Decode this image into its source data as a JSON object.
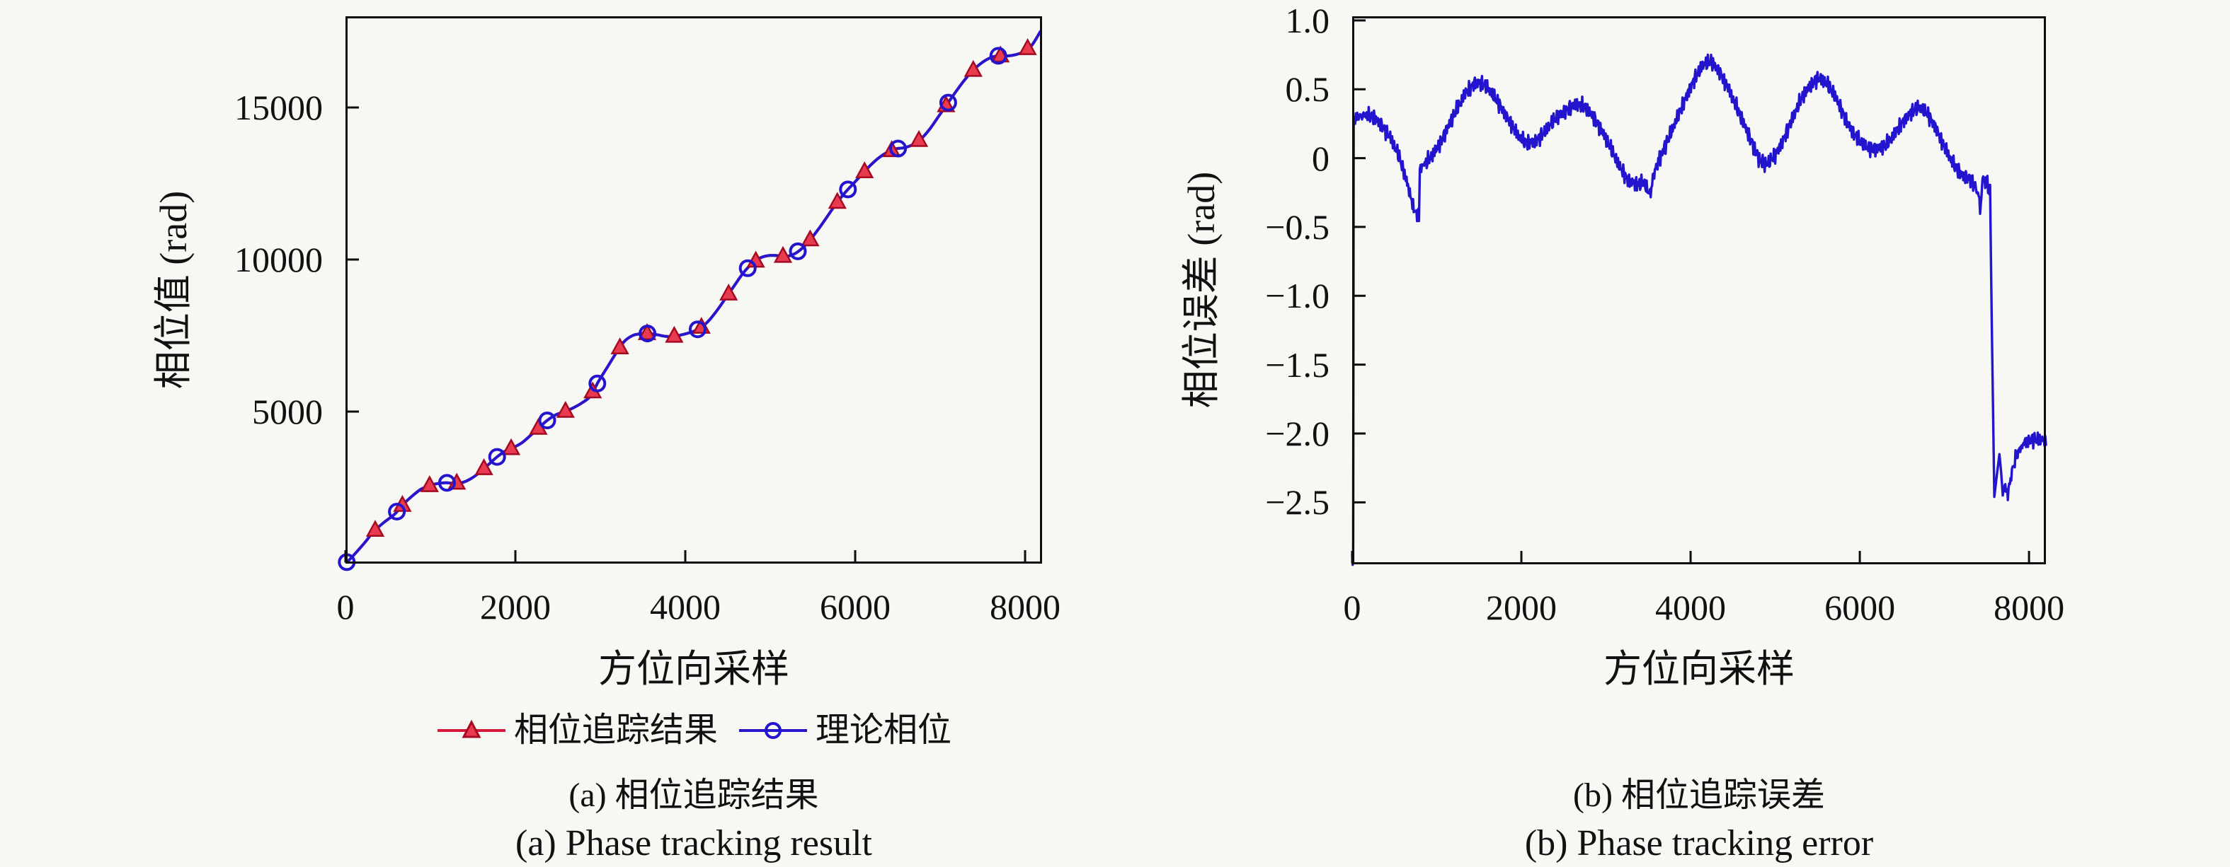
{
  "background": "#f7f7f4",
  "captions": {
    "left_zh": "(a) 相位追踪结果",
    "left_en": "(a) Phase tracking result",
    "right_zh": "(b) 相位追踪误差",
    "right_en": "(b) Phase tracking error"
  },
  "chart_data": [
    {
      "type": "line",
      "title": "",
      "xlabel": "方位向采样",
      "ylabel": "相位值 (rad)",
      "xlim": [
        0,
        8200
      ],
      "ylim": [
        0,
        18000
      ],
      "grid": false,
      "legend_position": "below",
      "xticks": [
        {
          "v": 0,
          "label": "0"
        },
        {
          "v": 2000,
          "label": "2000"
        },
        {
          "v": 4000,
          "label": "4000"
        },
        {
          "v": 6000,
          "label": "6000"
        },
        {
          "v": 8000,
          "label": "8000"
        }
      ],
      "yticks": [
        {
          "v": 5000,
          "label": "5000"
        },
        {
          "v": 10000,
          "label": "10000"
        },
        {
          "v": 15000,
          "label": "15000"
        }
      ],
      "x": [
        20,
        120,
        230,
        330,
        450,
        580,
        680,
        780,
        880,
        980,
        1080,
        1180,
        1280,
        1380,
        1480,
        1580,
        1680,
        1780,
        1880,
        1980,
        2080,
        2180,
        2280,
        2380,
        2480,
        2580,
        2680,
        2780,
        2880,
        2980,
        3080,
        3180,
        3280,
        3380,
        3480,
        3580,
        3680,
        3780,
        3880,
        3980,
        4080,
        4180,
        4280,
        4380,
        4480,
        4580,
        4680,
        4780,
        4880,
        4980,
        5080,
        5180,
        5280,
        5380,
        5480,
        5580,
        5680,
        5780,
        5880,
        5980,
        6080,
        6180,
        6280,
        6380,
        6480,
        6580,
        6680,
        6780,
        6880,
        6980,
        7080,
        7180,
        7280,
        7380,
        7480,
        7580,
        7680,
        7780,
        7880,
        7980,
        8080,
        8180
      ],
      "phase": [
        50,
        350,
        700,
        1050,
        1350,
        1630,
        1950,
        2210,
        2430,
        2560,
        2630,
        2660,
        2640,
        2670,
        2800,
        3000,
        3250,
        3500,
        3700,
        3820,
        3980,
        4220,
        4480,
        4720,
        4900,
        5000,
        5120,
        5280,
        5500,
        6000,
        6450,
        6900,
        7300,
        7500,
        7560,
        7570,
        7520,
        7470,
        7480,
        7540,
        7620,
        7750,
        8000,
        8350,
        8750,
        9150,
        9550,
        9850,
        10050,
        10130,
        10130,
        10100,
        10180,
        10380,
        10680,
        11050,
        11450,
        11850,
        12200,
        12500,
        12800,
        13100,
        13350,
        13530,
        13640,
        13680,
        13780,
        13980,
        14300,
        14700,
        15100,
        15500,
        15880,
        16200,
        16450,
        16620,
        16700,
        16690,
        16730,
        16830,
        17050,
        17500
      ],
      "series": [
        {
          "name": "相位追踪结果",
          "color": "#d4173a",
          "line_width": 4,
          "marker": "triangle",
          "marker_fill": "#e83b50",
          "marker_edge": "#a50a20",
          "marker_start": 350,
          "marker_every": 320
        },
        {
          "name": "理论相位",
          "color": "#2617cf",
          "line_width": 4,
          "marker": "circle",
          "marker_edge": "#2314cd",
          "marker_start": 15,
          "marker_every": 590
        }
      ]
    },
    {
      "type": "line",
      "title": "",
      "xlabel": "方位向采样",
      "ylabel": "相位误差 (rad)",
      "xlim": [
        0,
        8200
      ],
      "ylim": [
        -2.95,
        1.03
      ],
      "grid": false,
      "legend_position": "none",
      "xticks": [
        {
          "v": 0,
          "label": "0"
        },
        {
          "v": 2000,
          "label": "2000"
        },
        {
          "v": 4000,
          "label": "4000"
        },
        {
          "v": 6000,
          "label": "6000"
        },
        {
          "v": 8000,
          "label": "8000"
        }
      ],
      "yticks": [
        {
          "v": 1.0,
          "label": "1.0"
        },
        {
          "v": 0.5,
          "label": "0.5"
        },
        {
          "v": 0,
          "label": "0"
        },
        {
          "v": -0.5,
          "label": "−0.5"
        },
        {
          "v": -1.0,
          "label": "−1.0"
        },
        {
          "v": -1.5,
          "label": "−1.5"
        },
        {
          "v": -2.0,
          "label": "−2.0"
        },
        {
          "v": -2.5,
          "label": "−2.5"
        }
      ],
      "x": [
        0,
        12,
        18,
        60,
        150,
        250,
        350,
        450,
        550,
        650,
        720,
        760,
        790,
        800,
        850,
        950,
        1050,
        1150,
        1250,
        1350,
        1450,
        1550,
        1650,
        1750,
        1850,
        1950,
        2050,
        2150,
        2250,
        2350,
        2450,
        2550,
        2650,
        2750,
        2850,
        2950,
        3050,
        3150,
        3250,
        3350,
        3450,
        3520,
        3570,
        3650,
        3750,
        3850,
        3950,
        4050,
        4150,
        4250,
        4350,
        4450,
        4550,
        4650,
        4750,
        4820,
        4900,
        5000,
        5100,
        5200,
        5300,
        5400,
        5500,
        5600,
        5700,
        5800,
        5900,
        6000,
        6100,
        6200,
        6300,
        6400,
        6500,
        6600,
        6700,
        6800,
        6900,
        7000,
        7100,
        7200,
        7300,
        7380,
        7430,
        7450,
        7500,
        7540,
        7560,
        7590,
        7620,
        7650,
        7670,
        7690,
        7720,
        7750,
        7790,
        7840,
        7890,
        7950,
        8050,
        8150,
        8200
      ],
      "y": [
        -2.9,
        -2.9,
        0.28,
        0.3,
        0.31,
        0.3,
        0.24,
        0.15,
        0.02,
        -0.18,
        -0.35,
        -0.41,
        -0.42,
        -0.08,
        -0.05,
        0.02,
        0.12,
        0.25,
        0.37,
        0.48,
        0.55,
        0.54,
        0.47,
        0.38,
        0.28,
        0.17,
        0.11,
        0.12,
        0.17,
        0.25,
        0.31,
        0.36,
        0.39,
        0.37,
        0.3,
        0.2,
        0.08,
        -0.05,
        -0.15,
        -0.19,
        -0.18,
        -0.27,
        -0.1,
        0.02,
        0.16,
        0.3,
        0.45,
        0.58,
        0.68,
        0.7,
        0.62,
        0.5,
        0.36,
        0.22,
        0.08,
        -0.02,
        -0.05,
        0.02,
        0.14,
        0.28,
        0.42,
        0.52,
        0.58,
        0.55,
        0.46,
        0.33,
        0.2,
        0.12,
        0.07,
        0.07,
        0.09,
        0.16,
        0.26,
        0.33,
        0.37,
        0.32,
        0.22,
        0.08,
        -0.04,
        -0.12,
        -0.15,
        -0.22,
        -0.36,
        -0.15,
        -0.18,
        -0.24,
        -1.2,
        -2.46,
        -2.3,
        -2.15,
        -2.28,
        -2.45,
        -2.38,
        -2.44,
        -2.3,
        -2.18,
        -2.1,
        -2.06,
        -2.04,
        -2.05,
        -2.05
      ],
      "series": [
        {
          "name": "相位误差",
          "color": "#2314cd",
          "line_width": 3.4,
          "noise": 0.035
        }
      ]
    }
  ]
}
